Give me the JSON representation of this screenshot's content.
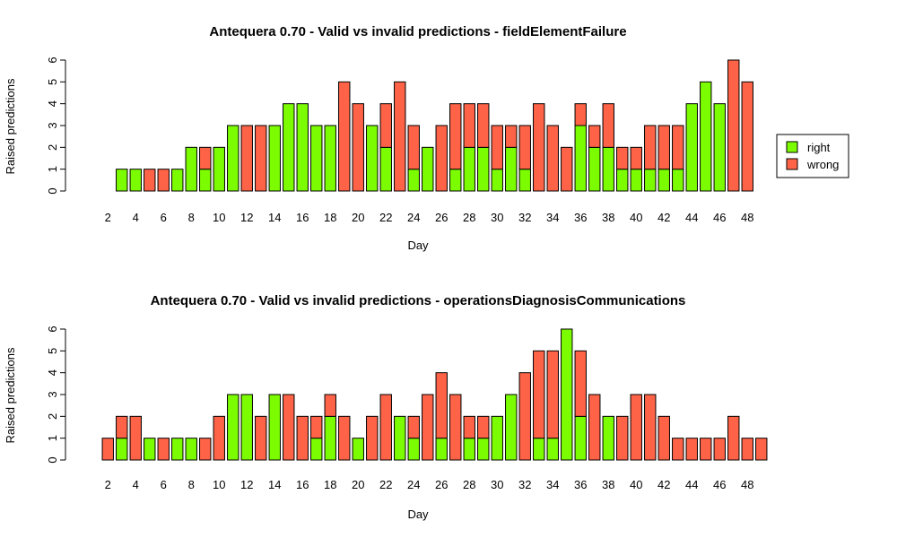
{
  "colors": {
    "right": "#7cfc00",
    "wrong": "#ff6347",
    "stroke": "#000000"
  },
  "chart_data": [
    {
      "type": "bar",
      "stacked": true,
      "title": "Antequera 0.70 - Valid vs invalid predictions - fieldElementFailure",
      "xlabel": "Day",
      "ylabel": "Raised predictions",
      "ylim": [
        0,
        6
      ],
      "yticks": [
        "0",
        "1",
        "2",
        "3",
        "4",
        "5",
        "6"
      ],
      "categories": [
        1,
        2,
        3,
        4,
        5,
        6,
        7,
        8,
        9,
        10,
        11,
        12,
        13,
        14,
        15,
        16,
        17,
        18,
        19,
        20,
        21,
        22,
        23,
        24,
        25,
        26,
        27,
        28,
        29,
        30,
        31,
        32,
        33,
        34,
        35,
        36,
        37,
        38,
        39,
        40,
        41,
        42,
        43,
        44,
        45,
        46,
        47,
        48,
        49
      ],
      "tick_labels": [
        "2",
        "4",
        "6",
        "8",
        "10",
        "12",
        "14",
        "16",
        "18",
        "20",
        "22",
        "24",
        "26",
        "28",
        "30",
        "32",
        "34",
        "36",
        "38",
        "40",
        "42",
        "44",
        "46",
        "48"
      ],
      "legend": {
        "placement": "right",
        "entries": [
          "right",
          "wrong"
        ]
      },
      "series": [
        {
          "name": "right",
          "values": [
            0,
            0,
            1,
            1,
            0,
            0,
            1,
            2,
            1,
            2,
            3,
            0,
            0,
            3,
            4,
            4,
            3,
            3,
            0,
            0,
            3,
            2,
            0,
            1,
            2,
            0,
            1,
            2,
            2,
            1,
            2,
            1,
            0,
            0,
            0,
            3,
            2,
            2,
            1,
            1,
            1,
            1,
            1,
            4,
            5,
            4,
            0,
            0,
            0
          ]
        },
        {
          "name": "wrong",
          "values": [
            0,
            0,
            0,
            0,
            1,
            1,
            0,
            0,
            1,
            0,
            0,
            3,
            3,
            0,
            0,
            0,
            0,
            0,
            5,
            4,
            0,
            2,
            5,
            2,
            0,
            3,
            3,
            2,
            2,
            2,
            1,
            2,
            4,
            3,
            2,
            1,
            1,
            2,
            1,
            1,
            2,
            2,
            2,
            0,
            0,
            0,
            6,
            5,
            0
          ]
        }
      ]
    },
    {
      "type": "bar",
      "stacked": true,
      "title": "Antequera 0.70 - Valid vs invalid predictions - operationsDiagnosisCommunications",
      "xlabel": "Day",
      "ylabel": "Raised predictions",
      "ylim": [
        0,
        6
      ],
      "yticks": [
        "0",
        "1",
        "2",
        "3",
        "4",
        "5",
        "6"
      ],
      "categories": [
        1,
        2,
        3,
        4,
        5,
        6,
        7,
        8,
        9,
        10,
        11,
        12,
        13,
        14,
        15,
        16,
        17,
        18,
        19,
        20,
        21,
        22,
        23,
        24,
        25,
        26,
        27,
        28,
        29,
        30,
        31,
        32,
        33,
        34,
        35,
        36,
        37,
        38,
        39,
        40,
        41,
        42,
        43,
        44,
        45,
        46,
        47,
        48,
        49
      ],
      "tick_labels": [
        "2",
        "4",
        "6",
        "8",
        "10",
        "12",
        "14",
        "16",
        "18",
        "20",
        "22",
        "24",
        "26",
        "28",
        "30",
        "32",
        "34",
        "36",
        "38",
        "40",
        "42",
        "44",
        "46",
        "48"
      ],
      "series": [
        {
          "name": "right",
          "values": [
            0,
            0,
            1,
            0,
            1,
            0,
            1,
            1,
            0,
            0,
            3,
            3,
            0,
            3,
            0,
            0,
            1,
            2,
            0,
            1,
            0,
            0,
            2,
            1,
            0,
            1,
            0,
            1,
            1,
            2,
            3,
            0,
            1,
            1,
            6,
            2,
            0,
            2,
            0,
            0,
            0,
            0,
            0,
            0,
            0,
            0,
            0,
            0,
            0
          ]
        },
        {
          "name": "wrong",
          "values": [
            0,
            1,
            1,
            2,
            0,
            1,
            0,
            0,
            1,
            2,
            0,
            0,
            2,
            0,
            3,
            2,
            1,
            1,
            2,
            0,
            2,
            3,
            0,
            1,
            3,
            3,
            3,
            1,
            1,
            0,
            0,
            4,
            4,
            4,
            0,
            3,
            3,
            0,
            2,
            3,
            3,
            2,
            1,
            1,
            1,
            1,
            2,
            1,
            1
          ]
        }
      ]
    }
  ]
}
